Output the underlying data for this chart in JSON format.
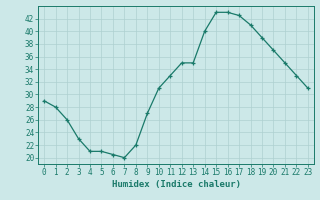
{
  "x": [
    0,
    1,
    2,
    3,
    4,
    5,
    6,
    7,
    8,
    9,
    10,
    11,
    12,
    13,
    14,
    15,
    16,
    17,
    18,
    19,
    20,
    21,
    22,
    23
  ],
  "y": [
    29,
    28,
    26,
    23,
    21,
    21,
    20.5,
    20,
    22,
    27,
    31,
    33,
    35,
    35,
    40,
    43,
    43,
    42.5,
    41,
    39,
    37,
    35,
    33,
    31
  ],
  "line_color": "#1a7a6a",
  "marker": "+",
  "bg_color": "#cce8e8",
  "grid_color": "#aed0d0",
  "xlabel": "Humidex (Indice chaleur)",
  "xlim": [
    -0.5,
    23.5
  ],
  "ylim": [
    19,
    44
  ],
  "yticks": [
    20,
    22,
    24,
    26,
    28,
    30,
    32,
    34,
    36,
    38,
    40,
    42
  ],
  "xticks": [
    0,
    1,
    2,
    3,
    4,
    5,
    6,
    7,
    8,
    9,
    10,
    11,
    12,
    13,
    14,
    15,
    16,
    17,
    18,
    19,
    20,
    21,
    22,
    23
  ],
  "tick_color": "#1a7a6a",
  "axis_color": "#1a7a6a",
  "label_fontsize": 6.5,
  "tick_fontsize": 5.5
}
